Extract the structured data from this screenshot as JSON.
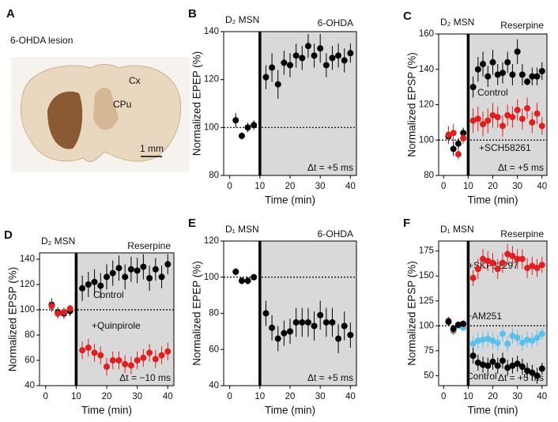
{
  "panel_a": {
    "panel": "A",
    "title": "6-OHDA lesion",
    "regions": [
      "Cx",
      "CPu"
    ],
    "scale_bar": "1 mm"
  },
  "chart_data": [
    {
      "type": "scatter",
      "panel": "B",
      "title": "D₂ MSN",
      "condition": "6-OHDA",
      "annotation": "Δt = +5 ms",
      "x_label": "Time (min)",
      "y_label": "Normalized EPEP (%)",
      "xlim": [
        -2,
        42
      ],
      "xticks": [
        0,
        10,
        20,
        30,
        40
      ],
      "ylim": [
        80,
        140
      ],
      "yticks": [
        80,
        100,
        120,
        140
      ],
      "treatment_start": 10,
      "reference_line": 100,
      "x": [
        2,
        4,
        6,
        8,
        12,
        14,
        16,
        18,
        20,
        22,
        24,
        26,
        28,
        30,
        32,
        34,
        36,
        38,
        40
      ],
      "series": [
        {
          "color": "#000000",
          "values": [
            103,
            96.5,
            100,
            101,
            121,
            125,
            118,
            127,
            126,
            130,
            129,
            134,
            130,
            133,
            126,
            129,
            130,
            128,
            131
          ],
          "errors": [
            3,
            1.5,
            2,
            2,
            5,
            6,
            6,
            5,
            5,
            5,
            5,
            5,
            5,
            6,
            5,
            5,
            5,
            5,
            4
          ]
        }
      ]
    },
    {
      "type": "scatter",
      "panel": "C",
      "title": "D₂ MSN",
      "condition": "Reserpine",
      "annotation": "Δt = +5 ms",
      "x_label": "Time (min)",
      "y_label": "Normalized EPSP (%)",
      "xlim": [
        -2,
        42
      ],
      "xticks": [
        0,
        10,
        20,
        30,
        40
      ],
      "ylim": [
        80,
        160
      ],
      "yticks": [
        80,
        100,
        120,
        140,
        160
      ],
      "treatment_start": 10,
      "reference_line": 100,
      "x": [
        2,
        4,
        6,
        8,
        12,
        14,
        16,
        18,
        20,
        22,
        24,
        26,
        28,
        30,
        32,
        34,
        36,
        38,
        40
      ],
      "series": [
        {
          "name": "Control",
          "color": "#000000",
          "values": [
            102,
            95,
            98,
            104,
            130,
            140,
            143,
            136,
            144,
            137,
            138,
            144,
            137,
            150,
            137,
            133,
            136,
            136,
            139
          ],
          "errors": [
            4,
            4,
            3,
            3,
            6,
            7,
            7,
            6,
            7,
            6,
            6,
            6,
            6,
            7,
            6,
            2,
            5,
            5,
            5
          ]
        },
        {
          "name": "+SCH58261",
          "color": "#e02020",
          "values": [
            103,
            104,
            92,
            101,
            111,
            112,
            109,
            111,
            114,
            113,
            108,
            114,
            113,
            117,
            112,
            118,
            110,
            115,
            108
          ],
          "errors": [
            5,
            5,
            3,
            3,
            7,
            7,
            7,
            7,
            7,
            6,
            6,
            6,
            6,
            6,
            6,
            6,
            6,
            6,
            5
          ]
        }
      ]
    },
    {
      "type": "scatter",
      "panel": "D",
      "title": "D₂ MSN",
      "condition": "Reserpine",
      "annotation": "Δt = −10 ms",
      "x_label": "Time (min)",
      "y_label": "Normalized EPSP (%)",
      "xlim": [
        -2,
        42
      ],
      "xticks": [
        0,
        10,
        20,
        30,
        40
      ],
      "ylim": [
        40,
        145
      ],
      "yticks": [
        40,
        60,
        80,
        100,
        120,
        140
      ],
      "treatment_start": 10,
      "reference_line": 100,
      "x": [
        2,
        4,
        6,
        8,
        12,
        14,
        16,
        18,
        20,
        22,
        24,
        26,
        28,
        30,
        32,
        34,
        36,
        38,
        40
      ],
      "series": [
        {
          "name": "Control",
          "color": "#000000",
          "values": [
            104,
            98,
            97,
            99,
            117,
            120,
            122,
            119,
            126,
            129,
            133,
            126,
            132,
            131,
            134,
            125,
            132,
            126,
            136
          ],
          "errors": [
            5,
            4,
            4,
            4,
            10,
            10,
            10,
            10,
            10,
            10,
            10,
            10,
            10,
            10,
            10,
            10,
            9,
            9,
            8
          ]
        },
        {
          "name": "+Quinpirole",
          "color": "#e02020",
          "values": [
            103,
            97,
            98,
            101,
            68,
            70,
            66,
            64,
            55,
            60,
            60,
            57,
            56,
            60,
            62,
            66,
            61,
            64,
            67
          ],
          "errors": [
            5,
            4,
            4,
            3,
            7,
            7,
            7,
            7,
            7,
            7,
            7,
            7,
            7,
            7,
            7,
            7,
            7,
            7,
            7
          ]
        }
      ]
    },
    {
      "type": "scatter",
      "panel": "E",
      "title": "D₁ MSN",
      "condition": "6-OHDA",
      "annotation": "Δt = +5 ms",
      "x_label": "Time (min)",
      "y_label": "Normalized EPEP (%)",
      "xlim": [
        -2,
        42
      ],
      "xticks": [
        0,
        10,
        20,
        30,
        40
      ],
      "ylim": [
        40,
        120
      ],
      "yticks": [
        40,
        60,
        80,
        100,
        120
      ],
      "treatment_start": 10,
      "reference_line": 100,
      "x": [
        2,
        4,
        6,
        8,
        12,
        14,
        16,
        18,
        20,
        22,
        24,
        26,
        28,
        30,
        32,
        34,
        36,
        38,
        40
      ],
      "series": [
        {
          "color": "#000000",
          "values": [
            103,
            98,
            98,
            100,
            80,
            72,
            66,
            69,
            70,
            75,
            75,
            75,
            73,
            79,
            75,
            75,
            66,
            73,
            68
          ],
          "errors": [
            2,
            2,
            2,
            1.5,
            7,
            7,
            7,
            7,
            7,
            8,
            8,
            8,
            8,
            8,
            8,
            8,
            8,
            8,
            7
          ]
        }
      ]
    },
    {
      "type": "scatter",
      "panel": "F",
      "title": "D₁ MSN",
      "condition": "Reserpine",
      "annotation": "Δt = +5 ms",
      "x_label": "Time (min)",
      "y_label": "Normalized EPSP (%)",
      "xlim": [
        -2,
        42
      ],
      "xticks": [
        0,
        10,
        20,
        30,
        40
      ],
      "ylim": [
        40,
        185
      ],
      "yticks": [
        50,
        75,
        100,
        125,
        150,
        175
      ],
      "treatment_start": 10,
      "reference_line": 100,
      "x": [
        2,
        4,
        6,
        8,
        12,
        14,
        16,
        18,
        20,
        22,
        24,
        26,
        28,
        30,
        32,
        34,
        36,
        38,
        40
      ],
      "series": [
        {
          "name": "+SKF81297",
          "color": "#e02020",
          "values": [
            105,
            95,
            101,
            102,
            148,
            157,
            167,
            165,
            163,
            157,
            163,
            172,
            170,
            167,
            167,
            158,
            160,
            158,
            161
          ],
          "errors": [
            4,
            4,
            3,
            3,
            8,
            10,
            10,
            10,
            10,
            10,
            10,
            10,
            10,
            10,
            10,
            10,
            9,
            9,
            8
          ]
        },
        {
          "name": "+AM251",
          "color": "#5bc0eb",
          "values": [
            104,
            96,
            100,
            98,
            82,
            85,
            86,
            87,
            85,
            83,
            92,
            82,
            90,
            88,
            83,
            86,
            85,
            88,
            92
          ],
          "errors": [
            4,
            4,
            3,
            3,
            8,
            8,
            8,
            8,
            8,
            8,
            8,
            8,
            8,
            8,
            8,
            8,
            8,
            8,
            6
          ]
        },
        {
          "name": "Control",
          "color": "#000000",
          "values": [
            104,
            97,
            101,
            102,
            70,
            63,
            61,
            60,
            64,
            60,
            65,
            58,
            60,
            62,
            59,
            55,
            53,
            50,
            57
          ],
          "errors": [
            4,
            4,
            3,
            3,
            8,
            8,
            8,
            8,
            8,
            8,
            8,
            8,
            8,
            8,
            8,
            8,
            8,
            8,
            6
          ]
        }
      ]
    }
  ]
}
